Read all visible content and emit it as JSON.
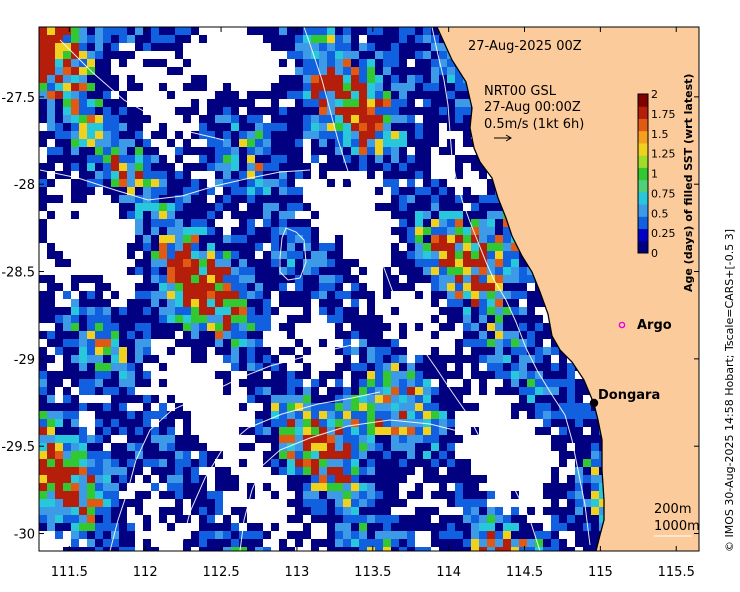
{
  "map": {
    "date_title": "27-Aug-2025 00Z",
    "current_legend": {
      "line1": "NRT00 GSL",
      "line2": "27-Aug 00:00Z",
      "line3": "0.5m/s (1kt 6h)"
    },
    "places": [
      {
        "name": "Argo",
        "lon": 115.12,
        "lat": -28.79
      },
      {
        "name": "Dongara",
        "lon": 114.94,
        "lat": -29.25
      }
    ],
    "depth_labels": {
      "d200": "200m",
      "d1000": "1000m"
    },
    "credit": "© IMOS 30-Aug-2025 14:58 Hobart; Tscale=CARS+[-0.5 3]",
    "colors": {
      "land": "#fccb9b",
      "missing": "#ffffff",
      "argo_marker": "#e600e6",
      "contour": "#ffffff",
      "coast": "#000000"
    }
  },
  "chart_data": {
    "type": "heatmap",
    "title": "27-Aug-2025 00Z",
    "x_ticks": [
      "111.5",
      "112",
      "112.5",
      "113",
      "113.5",
      "114",
      "114.5",
      "115",
      "115.5"
    ],
    "y_ticks": [
      "-27.5",
      "-28",
      "-28.5",
      "-29",
      "-29.5",
      "-30"
    ],
    "xlim": [
      111.3,
      115.65
    ],
    "ylim": [
      -30.1,
      -27.1
    ],
    "colorbar": {
      "title": "Age (days) of filled SST (wrt latest)",
      "ticks": [
        "0",
        "0.25",
        "0.5",
        "0.75",
        "1",
        "1.25",
        "1.5",
        "1.75",
        "2"
      ],
      "range": [
        0,
        2
      ],
      "colors": [
        "#000080",
        "#0000c8",
        "#1060e0",
        "#3c9ae6",
        "#28c8dc",
        "#50d078",
        "#32c832",
        "#a0dc28",
        "#f0d21e",
        "#f5a01e",
        "#e05a14",
        "#b41e0a",
        "#800000"
      ]
    }
  }
}
